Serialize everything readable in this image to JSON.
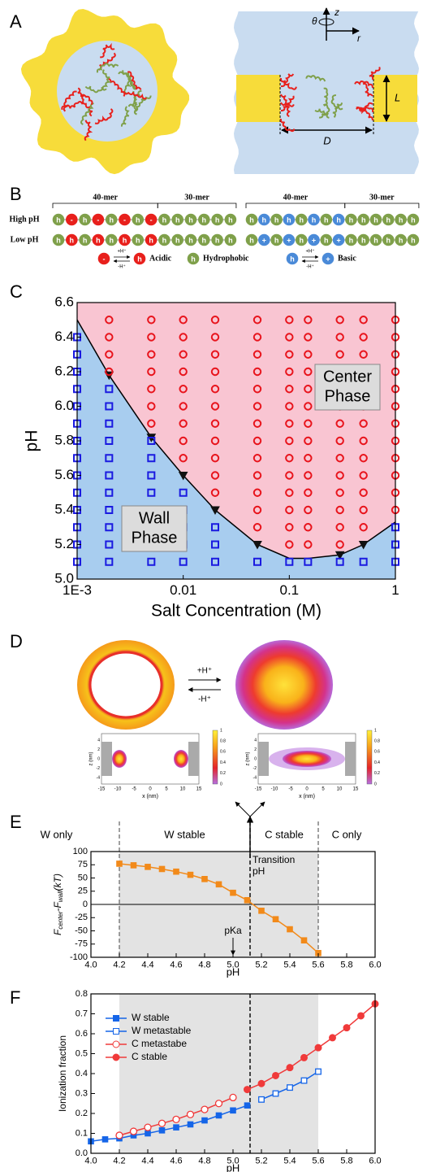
{
  "panel_labels": [
    "A",
    "B",
    "C",
    "D",
    "E",
    "F"
  ],
  "panel_a": {
    "z": "z",
    "theta": "θ",
    "r": "r",
    "L": "L",
    "D": "D"
  },
  "panel_b": {
    "groups": [
      "40-mer",
      "30-mer",
      "40-mer",
      "30-mer"
    ],
    "rows": [
      "High pH",
      "Low pH"
    ],
    "bead_h": "h",
    "bead_minus": "-",
    "bead_plus": "+",
    "protonate": "+H⁺",
    "deprotonate": "-H⁺",
    "legend": [
      "Acidic",
      "Hydrophobic",
      "Basic"
    ]
  },
  "panel_d": {
    "plus": "+H⁺",
    "minus": "-H⁺",
    "xlabel": "x (nm)",
    "zlabel": "z (nm)",
    "xticks": [
      "-15",
      "-10",
      "-5",
      "0",
      "5",
      "10",
      "15"
    ],
    "zticks": [
      "-4",
      "-2",
      "0",
      "2",
      "4"
    ],
    "cbar": [
      "0",
      "0.2",
      "0.4",
      "0.6",
      "0.8",
      "1"
    ]
  },
  "chart_data": [
    {
      "type": "scatter",
      "xscale": "log",
      "xlabel": "Salt Concentration (M)",
      "ylabel": "pH",
      "xlim": [
        0.001,
        1
      ],
      "ylim": [
        5,
        6.6
      ],
      "xticks": [
        {
          "value": 0.001,
          "label": "1E-3"
        },
        0.01,
        0.1,
        1
      ],
      "yticks": [
        {
          "value": 5,
          "label": "5.0"
        },
        5.2,
        5.4,
        5.6,
        5.8,
        {
          "value": 6,
          "label": "6.0"
        },
        6.2,
        6.4,
        6.6
      ],
      "annotations": [
        [
          "Center",
          "Phase"
        ],
        [
          "Wall",
          "Phase"
        ]
      ],
      "series": [
        {
          "marker": "line",
          "color": "#000000",
          "fill_above": "#f9c5d2",
          "fill_below": "#a8cdef",
          "x": [
            0.001,
            0.002,
            0.005,
            0.01,
            0.02,
            0.05,
            0.1,
            0.15,
            0.3,
            0.5,
            1
          ],
          "values": [
            6.5,
            6.18,
            5.82,
            5.6,
            5.4,
            5.2,
            5.12,
            5.12,
            5.14,
            5.2,
            5.33
          ]
        },
        {
          "marker": "triangle",
          "color": "#111111",
          "x": [
            0.002,
            0.005,
            0.01,
            0.02,
            0.05,
            0.3,
            0.5
          ],
          "values": [
            6.18,
            5.82,
            5.6,
            5.4,
            5.2,
            5.14,
            5.2
          ]
        },
        {
          "marker": "square",
          "color": "#1a1ae0",
          "x": [
            0.001,
            0.001,
            0.001,
            0.001,
            0.001,
            0.001,
            0.001,
            0.001,
            0.001,
            0.001,
            0.001,
            0.001,
            0.001,
            0.001,
            0.002,
            0.002,
            0.002,
            0.002,
            0.002,
            0.002,
            0.002,
            0.002,
            0.002,
            0.002,
            0.002,
            0.005,
            0.005,
            0.005,
            0.005,
            0.005,
            0.005,
            0.005,
            0.005,
            0.01,
            0.01,
            0.01,
            0.01,
            0.01,
            0.02,
            0.02,
            0.02,
            0.05,
            0.1,
            0.15,
            0.3,
            0.5,
            1,
            1,
            1
          ],
          "values": [
            5.1,
            5.2,
            5.3,
            5.4,
            5.5,
            5.6,
            5.7,
            5.8,
            5.9,
            6.0,
            6.1,
            6.2,
            6.3,
            6.4,
            5.1,
            5.2,
            5.3,
            5.4,
            5.5,
            5.6,
            5.7,
            5.8,
            5.9,
            6.0,
            6.1,
            5.1,
            5.2,
            5.3,
            5.4,
            5.5,
            5.6,
            5.7,
            5.8,
            5.1,
            5.2,
            5.3,
            5.4,
            5.5,
            5.1,
            5.2,
            5.3,
            5.1,
            5.1,
            5.1,
            5.1,
            5.1,
            5.1,
            5.2,
            5.3
          ]
        },
        {
          "marker": "circle",
          "color": "#e8141c",
          "x": [
            0.002,
            0.002,
            0.002,
            0.002,
            0.005,
            0.005,
            0.005,
            0.005,
            0.005,
            0.005,
            0.005,
            0.01,
            0.01,
            0.01,
            0.01,
            0.01,
            0.01,
            0.01,
            0.01,
            0.01,
            0.02,
            0.02,
            0.02,
            0.02,
            0.02,
            0.02,
            0.02,
            0.02,
            0.02,
            0.02,
            0.02,
            0.05,
            0.05,
            0.05,
            0.05,
            0.05,
            0.05,
            0.05,
            0.05,
            0.05,
            0.05,
            0.05,
            0.05,
            0.05,
            0.1,
            0.1,
            0.1,
            0.1,
            0.1,
            0.1,
            0.1,
            0.1,
            0.1,
            0.1,
            0.1,
            0.1,
            0.1,
            0.1,
            0.15,
            0.15,
            0.15,
            0.15,
            0.15,
            0.15,
            0.15,
            0.15,
            0.15,
            0.15,
            0.15,
            0.15,
            0.15,
            0.15,
            0.3,
            0.3,
            0.3,
            0.3,
            0.3,
            0.3,
            0.3,
            0.3,
            0.3,
            0.3,
            0.3,
            0.3,
            0.3,
            0.3,
            0.5,
            0.5,
            0.5,
            0.5,
            0.5,
            0.5,
            0.5,
            0.5,
            0.5,
            0.5,
            0.5,
            0.5,
            0.5,
            1,
            1,
            1,
            1,
            1,
            1,
            1,
            1,
            1,
            1,
            1,
            1
          ],
          "values": [
            6.2,
            6.3,
            6.4,
            6.5,
            5.9,
            6.0,
            6.1,
            6.2,
            6.3,
            6.4,
            6.5,
            5.7,
            5.8,
            5.9,
            6.0,
            6.1,
            6.2,
            6.3,
            6.4,
            6.5,
            5.5,
            5.6,
            5.7,
            5.8,
            5.9,
            6.0,
            6.1,
            6.2,
            6.3,
            6.4,
            6.5,
            5.3,
            5.4,
            5.5,
            5.6,
            5.7,
            5.8,
            5.9,
            6.0,
            6.1,
            6.2,
            6.3,
            6.4,
            6.5,
            5.2,
            5.3,
            5.4,
            5.5,
            5.6,
            5.7,
            5.8,
            5.9,
            6.0,
            6.1,
            6.2,
            6.3,
            6.4,
            6.5,
            5.2,
            5.3,
            5.4,
            5.5,
            5.6,
            5.7,
            5.8,
            5.9,
            6.0,
            6.1,
            6.2,
            6.3,
            6.4,
            6.5,
            5.2,
            5.3,
            5.4,
            5.5,
            5.6,
            5.7,
            5.8,
            5.9,
            6.0,
            6.1,
            6.2,
            6.3,
            6.4,
            6.5,
            5.3,
            5.4,
            5.5,
            5.6,
            5.7,
            5.8,
            5.9,
            6.0,
            6.1,
            6.2,
            6.3,
            6.4,
            6.5,
            5.4,
            5.5,
            5.6,
            5.7,
            5.8,
            5.9,
            6.0,
            6.1,
            6.2,
            6.3,
            6.4,
            6.5
          ]
        }
      ]
    },
    {
      "type": "line",
      "xlabel": "pH",
      "ylabel": [
        "F",
        "center",
        "-F",
        "wall",
        "(kT)"
      ],
      "xlim": [
        4,
        6
      ],
      "ylim": [
        -100,
        100
      ],
      "xticks": [
        {
          "value": 4,
          "label": "4.0"
        },
        4.2,
        4.4,
        4.6,
        4.8,
        {
          "value": 5,
          "label": "5.0"
        },
        5.2,
        5.4,
        5.6,
        5.8,
        {
          "value": 6,
          "label": "6.0"
        }
      ],
      "yticks": [
        -100,
        -75,
        -50,
        -25,
        0,
        25,
        50,
        75,
        100
      ],
      "shade": [
        4.2,
        5.6
      ],
      "vlines": [
        4.2,
        5.12,
        5.6
      ],
      "hline": 0,
      "shade_color": "#e3e3e3",
      "regions": [
        "W only",
        "W stable",
        "C stable",
        "C only"
      ],
      "transition_label": [
        "Transition",
        "pH"
      ],
      "pka_label": "pKa",
      "series": [
        {
          "marker": "square",
          "filled": true,
          "color": "#f28a1a",
          "x": [
            4.2,
            4.3,
            4.4,
            4.5,
            4.6,
            4.7,
            4.8,
            4.9,
            5.0,
            5.1,
            5.2,
            5.3,
            5.4,
            5.5,
            5.6
          ],
          "values": [
            77,
            74,
            71,
            67,
            62,
            56,
            48,
            38,
            22,
            8,
            -12,
            -28,
            -47,
            -68,
            -92
          ]
        }
      ]
    },
    {
      "type": "line",
      "xlabel": "pH",
      "ylabel": "Ionization fraction",
      "legend": "upper left",
      "xlim": [
        4,
        6
      ],
      "ylim": [
        0,
        0.8
      ],
      "xticks": [
        {
          "value": 4,
          "label": "4.0"
        },
        4.2,
        4.4,
        4.6,
        4.8,
        {
          "value": 5,
          "label": "5.0"
        },
        5.2,
        5.4,
        5.6,
        5.8,
        {
          "value": 6,
          "label": "6.0"
        }
      ],
      "yticks": [
        {
          "value": 0,
          "label": "0.0"
        },
        0.1,
        0.2,
        0.3,
        0.4,
        0.5,
        0.6,
        0.7,
        0.8
      ],
      "shade": [
        4.2,
        5.6
      ],
      "vlines": [
        5.12
      ],
      "shade_color": "#e3e3e3",
      "series": [
        {
          "name": "W stable",
          "marker": "square",
          "filled": true,
          "color": "#1565e8",
          "x": [
            4.0,
            4.1,
            4.2,
            4.3,
            4.4,
            4.5,
            4.6,
            4.7,
            4.8,
            4.9,
            5.0,
            5.1
          ],
          "values": [
            0.06,
            0.07,
            0.075,
            0.09,
            0.1,
            0.115,
            0.13,
            0.145,
            0.165,
            0.19,
            0.215,
            0.24
          ]
        },
        {
          "name": "W metastable",
          "marker": "square",
          "filled": false,
          "color": "#1565e8",
          "x": [
            5.2,
            5.3,
            5.4,
            5.5,
            5.6
          ],
          "values": [
            0.27,
            0.3,
            0.33,
            0.365,
            0.41
          ]
        },
        {
          "name": "C metastabe",
          "marker": "circle",
          "filled": false,
          "color": "#f03a3a",
          "x": [
            4.2,
            4.3,
            4.4,
            4.5,
            4.6,
            4.7,
            4.8,
            4.9,
            5.0
          ],
          "values": [
            0.09,
            0.11,
            0.13,
            0.15,
            0.17,
            0.195,
            0.22,
            0.25,
            0.28
          ]
        },
        {
          "name": "C stable",
          "marker": "circle",
          "filled": true,
          "color": "#f03a3a",
          "x": [
            5.1,
            5.2,
            5.3,
            5.4,
            5.5,
            5.6,
            5.7,
            5.8,
            5.9,
            6.0
          ],
          "values": [
            0.32,
            0.35,
            0.39,
            0.43,
            0.48,
            0.53,
            0.58,
            0.63,
            0.69,
            0.75
          ]
        }
      ]
    }
  ]
}
